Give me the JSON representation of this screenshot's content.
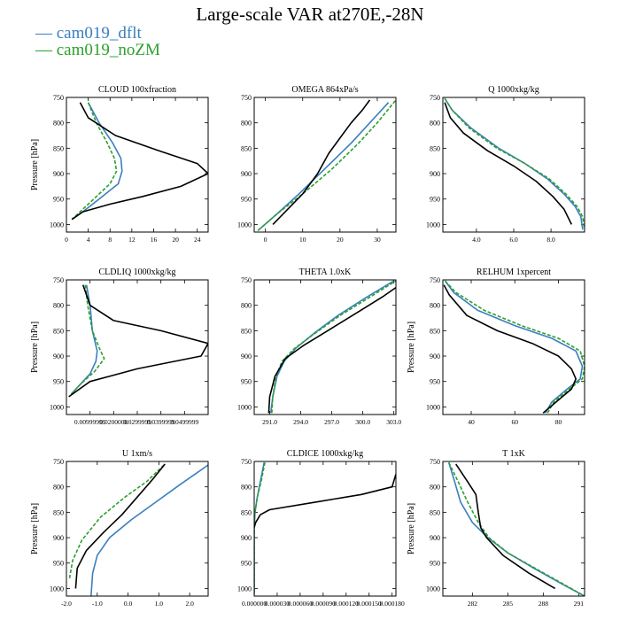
{
  "title": "Large-scale VAR at270E,-28N",
  "legend": [
    {
      "label": "— cam019_dflt",
      "color": "#3a7fbf"
    },
    {
      "label": "— cam019_noZM",
      "color": "#2ca02c"
    }
  ],
  "colors": {
    "dflt": "#3a7fbf",
    "noZM": "#2ca02c",
    "obs": "#000000"
  },
  "chart_data": [
    {
      "type": "line",
      "title": "CLOUD  100xfraction",
      "ylabel": "Pressure [hPa]",
      "xlim": [
        0,
        26
      ],
      "ylim": [
        1015,
        750
      ],
      "xticks": [
        0,
        4,
        8,
        12,
        16,
        20,
        24
      ],
      "xticklabels": [
        "0",
        "4",
        "8",
        "12",
        "16",
        "20",
        "24"
      ],
      "yticks": [
        750,
        800,
        850,
        900,
        950,
        1000
      ],
      "series": [
        {
          "name": "cam019_dflt",
          "color": "#3a7fbf",
          "dash": "",
          "x": [
            4,
            6,
            8.5,
            10,
            10.2,
            9.5,
            6,
            3,
            1
          ],
          "y": [
            760,
            800,
            840,
            870,
            895,
            920,
            950,
            975,
            990
          ]
        },
        {
          "name": "cam019_noZM",
          "color": "#2ca02c",
          "dash": "4 2",
          "x": [
            4,
            5.5,
            7.5,
            8.8,
            9.2,
            8,
            5,
            2.5,
            1
          ],
          "y": [
            760,
            800,
            840,
            870,
            895,
            920,
            950,
            975,
            990
          ]
        },
        {
          "name": "",
          "color": "#000000",
          "dash": "",
          "x": [
            2.5,
            4,
            9,
            17,
            24,
            26,
            21,
            14,
            8,
            3,
            1
          ],
          "y": [
            760,
            790,
            825,
            855,
            880,
            900,
            925,
            945,
            960,
            975,
            990
          ]
        }
      ]
    },
    {
      "type": "line",
      "title": "OMEGA  864xPa/s",
      "ylabel": "",
      "xlim": [
        -3,
        35
      ],
      "ylim": [
        1015,
        750
      ],
      "xticks": [
        0,
        10,
        20,
        30
      ],
      "xticklabels": [
        "0",
        "10",
        "20",
        "30"
      ],
      "yticks": [
        750,
        800,
        850,
        900,
        950,
        1000
      ],
      "series": [
        {
          "name": "cam019_dflt",
          "color": "#3a7fbf",
          "dash": "",
          "x": [
            -2,
            3,
            9,
            16,
            23,
            28,
            33
          ],
          "y": [
            1012,
            980,
            940,
            890,
            840,
            800,
            760
          ]
        },
        {
          "name": "cam019_noZM",
          "color": "#2ca02c",
          "dash": "4 2",
          "x": [
            -2,
            3,
            10,
            18,
            25,
            30,
            35
          ],
          "y": [
            1012,
            980,
            940,
            890,
            840,
            800,
            755
          ]
        },
        {
          "name": "",
          "color": "#000000",
          "dash": "",
          "x": [
            2,
            6,
            10,
            14,
            17,
            20,
            23,
            26,
            28
          ],
          "y": [
            1000,
            970,
            940,
            900,
            860,
            830,
            800,
            775,
            755
          ]
        }
      ]
    },
    {
      "type": "line",
      "title": "Q  1000xkg/kg",
      "ylabel": "",
      "xlim": [
        2.2,
        9.8
      ],
      "ylim": [
        1015,
        750
      ],
      "xticks": [
        4,
        6,
        8
      ],
      "xticklabels": [
        "4.0",
        "6.0",
        "8.0"
      ],
      "yticks": [
        750,
        800,
        850,
        900,
        950,
        1000
      ],
      "series": [
        {
          "name": "cam019_dflt",
          "color": "#3a7fbf",
          "dash": "",
          "x": [
            2.3,
            2.7,
            3.7,
            5.2,
            6.6,
            7.8,
            8.7,
            9.3,
            9.6,
            9.7
          ],
          "y": [
            752,
            775,
            810,
            850,
            880,
            910,
            940,
            965,
            985,
            1010
          ]
        },
        {
          "name": "cam019_noZM",
          "color": "#2ca02c",
          "dash": "4 2",
          "x": [
            2.3,
            2.7,
            3.6,
            5.1,
            6.6,
            7.9,
            8.8,
            9.4,
            9.7,
            9.8
          ],
          "y": [
            752,
            775,
            810,
            850,
            880,
            910,
            940,
            965,
            985,
            1010
          ]
        },
        {
          "name": "",
          "color": "#000000",
          "dash": "",
          "x": [
            2.3,
            2.6,
            3.3,
            4.6,
            6.0,
            7.2,
            8.1,
            8.7,
            9.1
          ],
          "y": [
            760,
            790,
            820,
            855,
            885,
            915,
            945,
            970,
            1000
          ]
        }
      ]
    },
    {
      "type": "line",
      "title": "CLDLIQ  1000xkg/kg",
      "ylabel": "Pressure [hPa]",
      "xlim": [
        0,
        0.06
      ],
      "ylim": [
        1015,
        750
      ],
      "xticks": [
        0.01,
        0.02,
        0.03,
        0.04,
        0.05
      ],
      "xticklabels": [
        "0.00999999",
        "0.0200000",
        "0.0299999",
        "0.0399999",
        "0.0499999"
      ],
      "xticklabel_note": "tick labels overlap in the original",
      "yticks": [
        750,
        800,
        850,
        900,
        950,
        1000
      ],
      "series": [
        {
          "name": "cam019_dflt",
          "color": "#3a7fbf",
          "dash": "",
          "x": [
            0.0085,
            0.01,
            0.011,
            0.013,
            0.0125,
            0.01,
            0.006,
            0.002
          ],
          "y": [
            760,
            800,
            850,
            890,
            910,
            935,
            955,
            975
          ]
        },
        {
          "name": "cam019_noZM",
          "color": "#2ca02c",
          "dash": "4 2",
          "x": [
            0.008,
            0.009,
            0.011,
            0.014,
            0.016,
            0.012,
            0.006,
            0.002
          ],
          "y": [
            760,
            800,
            850,
            885,
            905,
            930,
            955,
            975
          ]
        },
        {
          "name": "",
          "color": "#000000",
          "dash": "",
          "x": [
            0.007,
            0.01,
            0.02,
            0.04,
            0.06,
            0.057,
            0.03,
            0.01,
            0.001
          ],
          "y": [
            760,
            800,
            830,
            850,
            875,
            900,
            925,
            950,
            980
          ]
        }
      ]
    },
    {
      "type": "line",
      "title": "THETA  1.0xK",
      "ylabel": "",
      "xlim": [
        289.5,
        303.2
      ],
      "ylim": [
        1015,
        750
      ],
      "xticks": [
        291,
        294,
        297,
        300,
        303
      ],
      "xticklabels": [
        "291.0",
        "294.0",
        "297.0",
        "300.0",
        "303.0"
      ],
      "yticks": [
        750,
        800,
        850,
        900,
        950,
        1000
      ],
      "series": [
        {
          "name": "cam019_dflt",
          "color": "#3a7fbf",
          "dash": "",
          "x": [
            291.1,
            291.3,
            291.7,
            292.4,
            293.5,
            295.3,
            297.6,
            300.3,
            303.0
          ],
          "y": [
            1012,
            980,
            940,
            910,
            885,
            855,
            820,
            785,
            752
          ]
        },
        {
          "name": "cam019_noZM",
          "color": "#2ca02c",
          "dash": "4 2",
          "x": [
            291.2,
            291.3,
            291.6,
            292.2,
            293.4,
            295.4,
            297.8,
            300.6,
            303.2
          ],
          "y": [
            1012,
            980,
            940,
            910,
            885,
            855,
            820,
            785,
            752
          ]
        },
        {
          "name": "",
          "color": "#000000",
          "dash": "",
          "x": [
            290.9,
            291.0,
            291.5,
            292.5,
            294.2,
            296.6,
            299.4,
            302.0,
            303.2
          ],
          "y": [
            1012,
            980,
            940,
            905,
            880,
            850,
            815,
            782,
            765
          ]
        }
      ]
    },
    {
      "type": "line",
      "title": "RELHUM  1xpercent",
      "ylabel": "Pressure [hPa]",
      "xlim": [
        27,
        92
      ],
      "ylim": [
        1015,
        750
      ],
      "xticks": [
        40,
        60,
        80
      ],
      "xticklabels": [
        "40",
        "60",
        "80"
      ],
      "yticks": [
        750,
        800,
        850,
        900,
        950,
        1000
      ],
      "series": [
        {
          "name": "cam019_dflt",
          "color": "#3a7fbf",
          "dash": "",
          "x": [
            28,
            32,
            43,
            60,
            77,
            88,
            91,
            90,
            84,
            77,
            74
          ],
          "y": [
            752,
            775,
            810,
            840,
            865,
            890,
            920,
            945,
            965,
            990,
            1012
          ]
        },
        {
          "name": "cam019_noZM",
          "color": "#2ca02c",
          "dash": "4 2",
          "x": [
            28,
            33,
            46,
            63,
            80,
            90,
            92,
            91,
            85,
            78,
            75
          ],
          "y": [
            752,
            775,
            810,
            840,
            865,
            890,
            920,
            945,
            965,
            990,
            1012
          ]
        },
        {
          "name": "",
          "color": "#000000",
          "dash": "",
          "x": [
            27.5,
            30,
            38,
            52,
            68,
            80,
            86,
            88,
            86,
            79,
            73
          ],
          "y": [
            760,
            780,
            820,
            850,
            875,
            900,
            925,
            945,
            965,
            990,
            1012
          ]
        }
      ]
    },
    {
      "type": "line",
      "title": "U  1xm/s",
      "ylabel": "Pressure [hPa]",
      "xlim": [
        -2.0,
        2.6
      ],
      "ylim": [
        1015,
        750
      ],
      "xticks": [
        -2,
        -1,
        0,
        1,
        2
      ],
      "xticklabels": [
        "-2.0",
        "-1.0",
        "0.0",
        "1.0",
        "2.0"
      ],
      "yticks": [
        750,
        800,
        850,
        900,
        950,
        1000
      ],
      "series": [
        {
          "name": "cam019_dflt",
          "color": "#3a7fbf",
          "dash": "",
          "x": [
            -1.2,
            -1.15,
            -1.0,
            -0.6,
            0.1,
            0.9,
            1.7,
            2.6
          ],
          "y": [
            1015,
            970,
            935,
            900,
            865,
            830,
            795,
            757
          ]
        },
        {
          "name": "cam019_noZM",
          "color": "#2ca02c",
          "dash": "4 2",
          "x": [
            -1.9,
            -1.8,
            -1.5,
            -0.9,
            -0.1,
            0.6,
            1.2
          ],
          "y": [
            980,
            945,
            905,
            860,
            820,
            790,
            755
          ]
        },
        {
          "name": "",
          "color": "#000000",
          "dash": "",
          "x": [
            -1.7,
            -1.65,
            -1.35,
            -0.8,
            -0.2,
            0.3,
            0.8,
            1.2
          ],
          "y": [
            1000,
            960,
            925,
            890,
            855,
            820,
            785,
            755
          ]
        }
      ]
    },
    {
      "type": "line",
      "title": "CLDICE  1000xkg/kg",
      "ylabel": "",
      "xlim": [
        0,
        0.000185
      ],
      "ylim": [
        1015,
        750
      ],
      "xticks": [
        0,
        3e-05,
        6e-05,
        9e-05,
        0.00012,
        0.00015,
        0.00018
      ],
      "xticklabels": [
        "0.000000",
        "0.000030",
        "0.000060",
        "0.000090",
        "0.000120",
        "0.000150",
        "0.000180"
      ],
      "xticklabel_note": "tick labels overlap in the original",
      "yticks": [
        750,
        800,
        850,
        900,
        950,
        1000
      ],
      "series": [
        {
          "name": "cam019_dflt",
          "color": "#3a7fbf",
          "dash": "",
          "x": [
            1.3e-05,
            8e-06,
            4e-06,
            1e-06,
            0,
            0,
            0
          ],
          "y": [
            752,
            790,
            820,
            850,
            880,
            950,
            1012
          ]
        },
        {
          "name": "cam019_noZM",
          "color": "#2ca02c",
          "dash": "4 2",
          "x": [
            1.4e-05,
            9e-06,
            4e-06,
            1e-06,
            0,
            0,
            0
          ],
          "y": [
            752,
            790,
            820,
            850,
            880,
            950,
            1012
          ]
        },
        {
          "name": "",
          "color": "#000000",
          "dash": "",
          "x": [
            0.000185,
            0.00018,
            0.00014,
            8e-05,
            2e-05,
            8e-06,
            2e-06,
            0
          ],
          "y": [
            775,
            800,
            815,
            830,
            845,
            855,
            870,
            880
          ]
        }
      ]
    },
    {
      "type": "line",
      "title": "T  1xK",
      "ylabel": "Pressure [hPa]",
      "xlim": [
        279.5,
        291.5
      ],
      "ylim": [
        1015,
        750
      ],
      "xticks": [
        282,
        285,
        288,
        291
      ],
      "xticklabels": [
        "282",
        "285",
        "288",
        "291"
      ],
      "yticks": [
        750,
        800,
        850,
        900,
        950,
        1000
      ],
      "series": [
        {
          "name": "cam019_dflt",
          "color": "#3a7fbf",
          "dash": "",
          "x": [
            280.0,
            280.5,
            281.0,
            282.0,
            283.3,
            285.0,
            287.2,
            289.5,
            291.5
          ],
          "y": [
            752,
            790,
            830,
            870,
            900,
            930,
            960,
            990,
            1015
          ]
        },
        {
          "name": "cam019_noZM",
          "color": "#2ca02c",
          "dash": "4 2",
          "x": [
            280.0,
            280.8,
            281.6,
            282.5,
            283.4,
            285.0,
            287.3,
            289.6,
            291.5
          ],
          "y": [
            752,
            790,
            830,
            870,
            900,
            930,
            960,
            990,
            1015
          ]
        },
        {
          "name": "",
          "color": "#000000",
          "dash": "",
          "x": [
            280.6,
            281.6,
            282.3,
            282.5,
            282.7,
            283.2,
            284.6,
            286.8,
            289.0
          ],
          "y": [
            755,
            790,
            815,
            850,
            880,
            900,
            935,
            970,
            1000
          ]
        }
      ]
    }
  ]
}
